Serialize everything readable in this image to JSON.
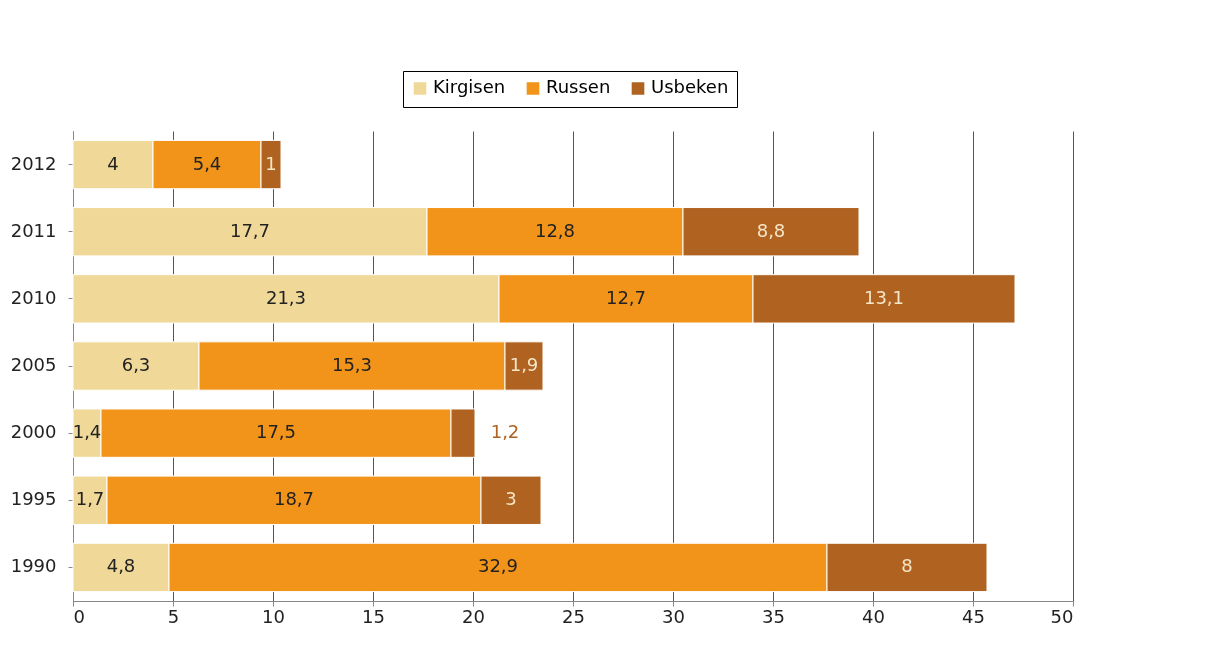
{
  "chart_data": {
    "type": "bar",
    "orientation": "horizontal",
    "stacked": true,
    "categories": [
      "2012",
      "2011",
      "2010",
      "2005",
      "2000",
      "1995",
      "1990"
    ],
    "series": [
      {
        "name": "Kirgisen",
        "color": "#f0d898",
        "values": [
          4,
          17.7,
          21.3,
          6.3,
          1.4,
          1.7,
          4.8
        ],
        "value_labels": [
          "4",
          "17,7",
          "21,3",
          "6,3",
          "1,4",
          "1,7",
          "4,8"
        ]
      },
      {
        "name": "Russen",
        "color": "#f29419",
        "values": [
          5.4,
          12.8,
          12.7,
          15.3,
          17.5,
          18.7,
          32.9
        ],
        "value_labels": [
          "5,4",
          "12,8",
          "12,7",
          "15,3",
          "17,5",
          "18,7",
          "32,9"
        ]
      },
      {
        "name": "Usbeken",
        "color": "#b06220",
        "values": [
          1,
          8.8,
          13.1,
          1.9,
          1.2,
          3,
          8
        ],
        "value_labels": [
          "1",
          "8,8",
          "13,1",
          "1,9",
          "1,2",
          "3",
          "8"
        ]
      }
    ],
    "xlim": [
      0,
      50
    ],
    "xticks": [
      0,
      5,
      10,
      15,
      20,
      25,
      30,
      35,
      40,
      45,
      50
    ],
    "grid": "x",
    "legend": "top"
  }
}
